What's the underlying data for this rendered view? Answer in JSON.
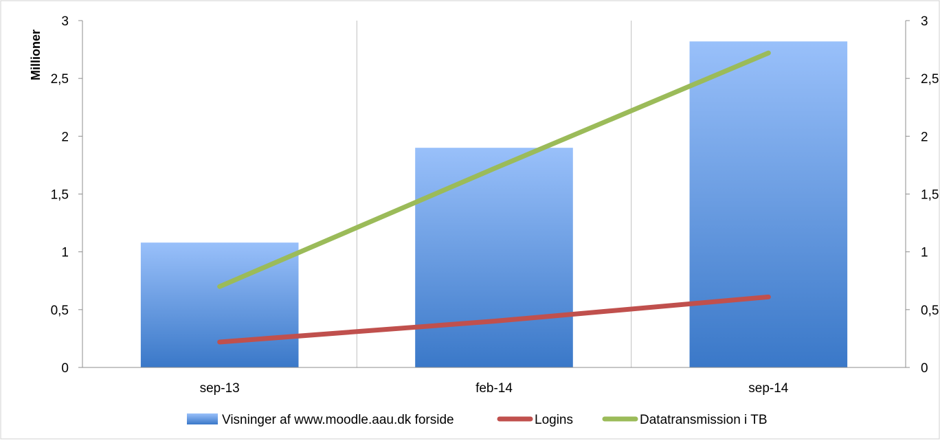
{
  "chart_data": {
    "type": "bar",
    "categories": [
      "sep-13",
      "feb-14",
      "sep-14"
    ],
    "y_axis_label": "Millioner",
    "ylim": [
      0,
      3
    ],
    "y_ticks": [
      "0",
      "0,5",
      "1",
      "1,5",
      "2",
      "2,5",
      "3"
    ],
    "y2lim": [
      0,
      3
    ],
    "y2_ticks": [
      "0",
      "0,5",
      "1",
      "1,5",
      "2",
      "2,5",
      "3"
    ],
    "grid": "vertical",
    "legend_position": "bottom",
    "series": [
      {
        "name": "Visninger af www.moodle.aau.dk forside",
        "type": "bar",
        "axis": "left",
        "values": [
          1.08,
          1.9,
          2.82
        ],
        "color_top": "#99c0fa",
        "color_bottom": "#3a78c8"
      },
      {
        "name": "Logins",
        "type": "line",
        "axis": "right",
        "values": [
          0.22,
          0.4,
          0.61
        ],
        "color": "#c0504d"
      },
      {
        "name": "Datatransmission i TB",
        "type": "line",
        "axis": "right",
        "values": [
          0.7,
          1.72,
          2.72
        ],
        "color": "#9bbb59"
      }
    ]
  }
}
